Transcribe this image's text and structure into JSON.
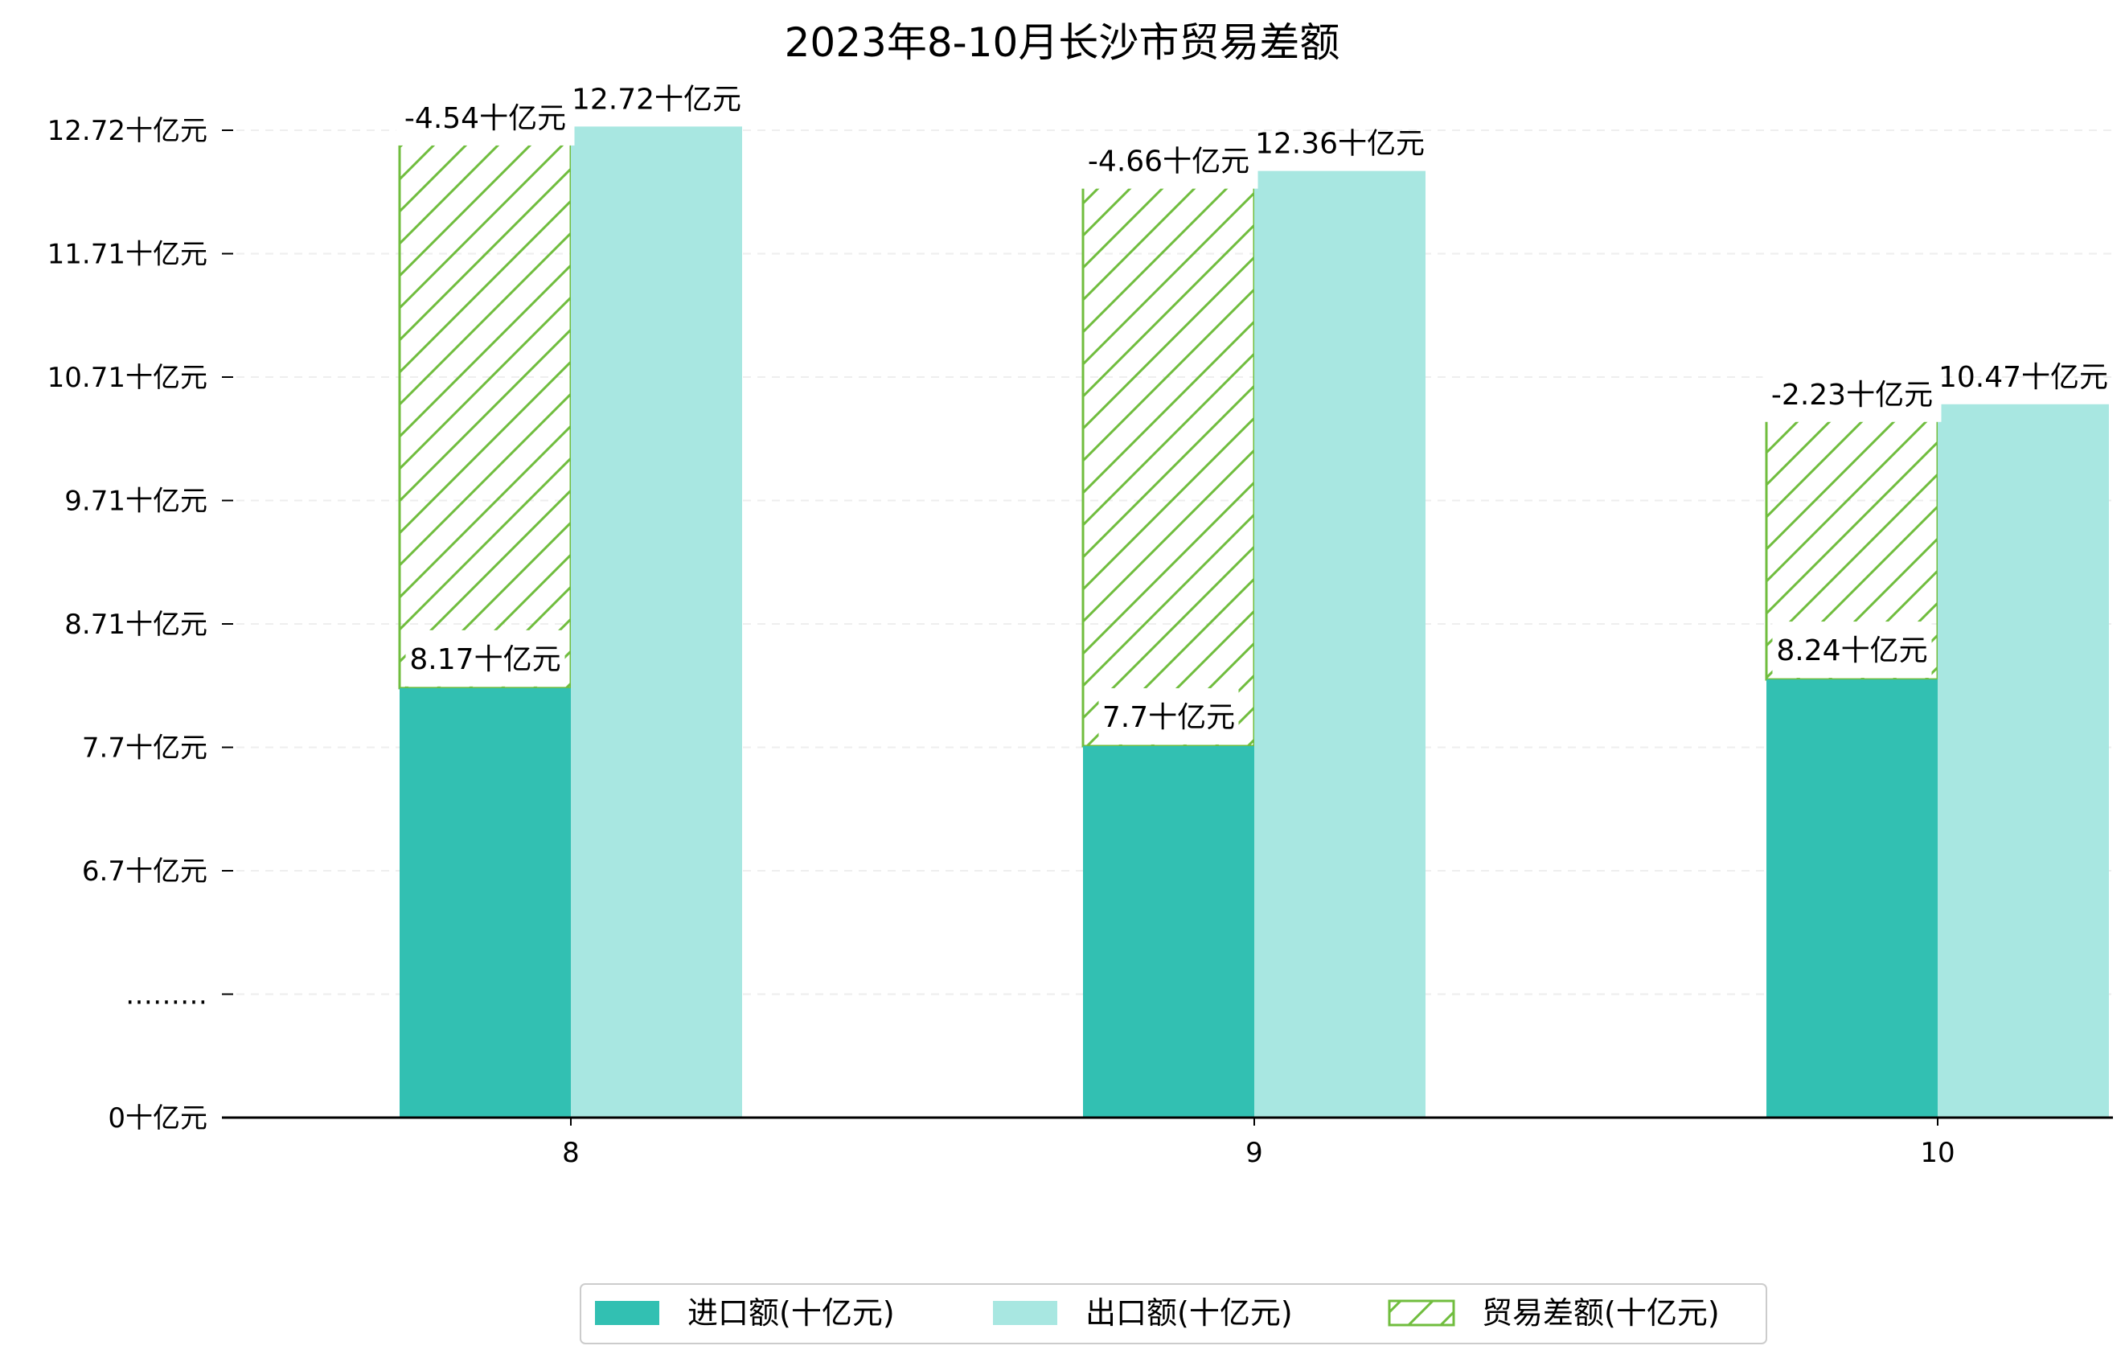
{
  "chart_data": {
    "type": "bar",
    "title": "2023年8-10月长沙市贸易差额",
    "categories": [
      "8",
      "9",
      "10"
    ],
    "series": [
      {
        "name": "进口额(十亿元)",
        "values": [
          8.17,
          7.7,
          8.24
        ],
        "labels": [
          "8.17十亿元",
          "7.7十亿元",
          "8.24十亿元"
        ]
      },
      {
        "name": "出口额(十亿元)",
        "values": [
          12.72,
          12.36,
          10.47
        ],
        "labels": [
          "12.72十亿元",
          "12.36十亿元",
          "10.47十亿元"
        ]
      },
      {
        "name": "贸易差额(十亿元)",
        "values": [
          -4.54,
          -4.66,
          -2.23
        ],
        "labels": [
          "-4.54十亿元",
          "-4.66十亿元",
          "-2.23十亿元"
        ]
      }
    ],
    "yticks": [
      "0十亿元",
      "………",
      "6.7十亿元",
      "7.7十亿元",
      "8.71十亿元",
      "9.71十亿元",
      "10.71十亿元",
      "11.71十亿元",
      "12.72十亿元"
    ],
    "ylim": [
      4.69,
      12.72
    ],
    "y_axis_break": true,
    "grid": "y-dashed",
    "legend_position": "bottom-center",
    "colors": {
      "import": "#32c0b2",
      "export": "#a8e7e1",
      "balance": "#70bd3e"
    }
  }
}
